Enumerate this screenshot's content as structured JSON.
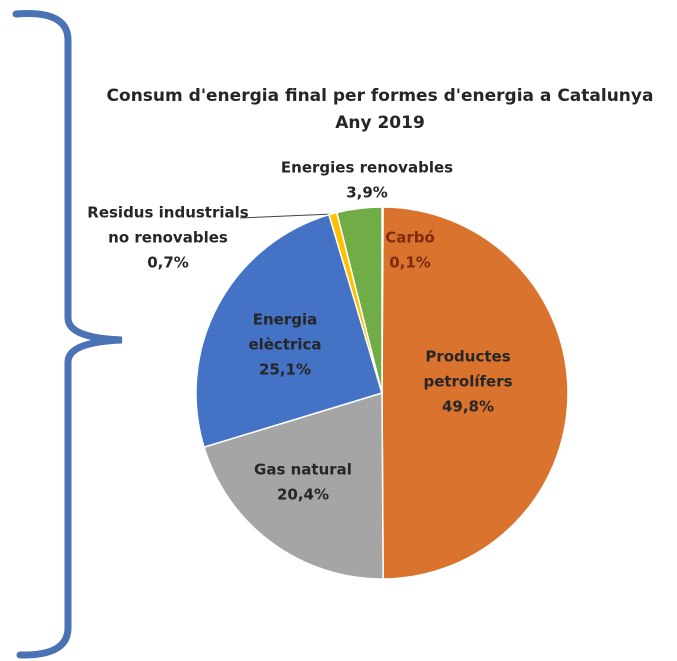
{
  "chart_data": {
    "type": "pie",
    "title": "Consum d'energia final per formes d'energia a Catalunya",
    "subtitle": "Any 2019",
    "categories": [
      [
        "Carbó"
      ],
      [
        "Productes",
        "petrolífers"
      ],
      [
        "Gas natural"
      ],
      [
        "Energia",
        "elèctrica"
      ],
      [
        "Residus industrials",
        "no renovables"
      ],
      [
        "Energies renovables"
      ]
    ],
    "values": [
      0.1,
      49.8,
      20.4,
      25.1,
      0.7,
      3.9
    ],
    "value_labels": [
      "0,1%",
      "49,8%",
      "20,4%",
      "25,1%",
      "0,7%",
      "3,9%"
    ],
    "colors": [
      "#843c0c",
      "#d9732d",
      "#a5a5a5",
      "#4472c4",
      "#ffc000",
      "#70ad47"
    ]
  }
}
